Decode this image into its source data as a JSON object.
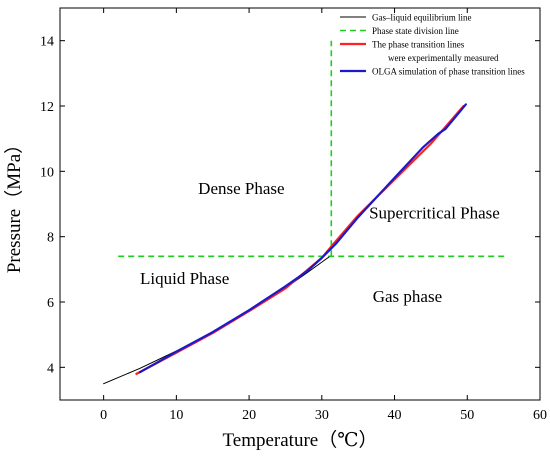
{
  "chart_data": {
    "type": "line",
    "title": "",
    "xlabel": "Temperature（℃）",
    "ylabel": "Pressure（MPa）",
    "xlim": [
      -6,
      60
    ],
    "ylim": [
      3.0,
      15.0
    ],
    "x_ticks": [
      0,
      10,
      20,
      30,
      40,
      50,
      60
    ],
    "y_ticks": [
      4,
      6,
      8,
      10,
      12,
      14
    ],
    "grid": false,
    "legend_position": "top-right",
    "series": [
      {
        "name": "Gas–liquid equilibrium line",
        "color": "#000000",
        "style": "solid",
        "x": [
          0,
          5,
          10,
          15,
          20,
          25,
          28,
          31
        ],
        "y": [
          3.5,
          3.97,
          4.5,
          5.08,
          5.73,
          6.43,
          6.9,
          7.38
        ]
      },
      {
        "name": "Phase state division line",
        "color": "#22cc22",
        "style": "dashed",
        "segments": [
          {
            "x": [
              2,
              55.5
            ],
            "y": [
              7.4,
              7.4
            ]
          },
          {
            "x": [
              31.3,
              31.3
            ],
            "y": [
              7.4,
              14.0
            ]
          }
        ]
      },
      {
        "name": "The phase transition lines were experimentally measured",
        "color": "#ff2020",
        "style": "solid",
        "x": [
          4.5,
          10,
          15,
          20,
          25,
          30,
          31.5,
          35,
          40,
          45,
          49.5
        ],
        "y": [
          3.8,
          4.45,
          5.05,
          5.72,
          6.42,
          7.35,
          7.75,
          8.65,
          9.75,
          10.85,
          12.0
        ]
      },
      {
        "name": "OLGA simulation of phase transition lines",
        "color": "#1a1acc",
        "style": "solid",
        "x": [
          5,
          10,
          15,
          20,
          25,
          28,
          30,
          32,
          35,
          40,
          44,
          46,
          47,
          48.5,
          49.8
        ],
        "y": [
          3.85,
          4.48,
          5.08,
          5.75,
          6.48,
          6.95,
          7.35,
          7.8,
          8.6,
          9.8,
          10.75,
          11.15,
          11.3,
          11.7,
          12.05
        ]
      }
    ],
    "annotations": [
      {
        "text": "Dense Phase",
        "x": 13,
        "y": 9.3
      },
      {
        "text": "Supercritical Phase",
        "x": 36.5,
        "y": 8.55
      },
      {
        "text": "Liquid Phase",
        "x": 5,
        "y": 6.55
      },
      {
        "text": "Gas phase",
        "x": 37,
        "y": 6.0
      }
    ]
  }
}
